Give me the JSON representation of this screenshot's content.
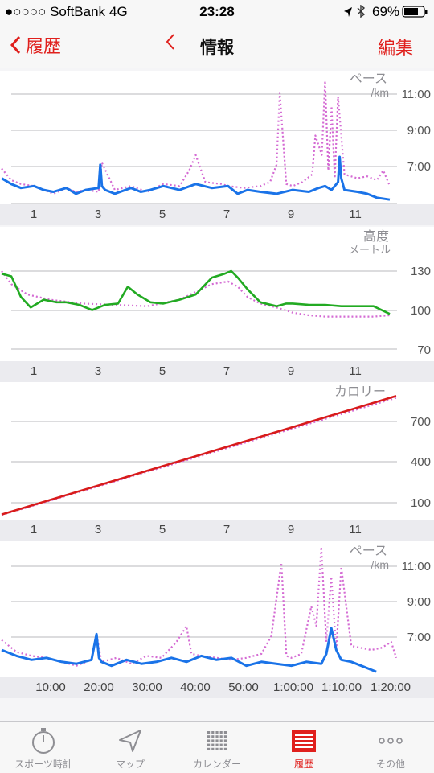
{
  "status_bar": {
    "carrier": "●○○○○ SoftBank",
    "network": "4G",
    "time": "23:28",
    "battery": "69%"
  },
  "nav": {
    "back_label": "履歴",
    "title": "情報",
    "edit_label": "編集"
  },
  "colors": {
    "accent": "#e0201d",
    "pace_line": "#1a73e8",
    "compare_dotted": "#d46bd3",
    "elevation_line": "#22aa22",
    "calorie_line": "#d81b1b"
  },
  "charts": {
    "pace_km": {
      "label": "ペース",
      "unit": "/km",
      "ticks": [
        "11:00",
        "9:00",
        "7:00"
      ],
      "x_ticks": [
        "1",
        "3",
        "5",
        "7",
        "9",
        "11"
      ]
    },
    "elevation": {
      "label": "高度",
      "unit": "メートル",
      "ticks": [
        "130",
        "100",
        "70"
      ],
      "x_ticks": [
        "1",
        "3",
        "5",
        "7",
        "9",
        "11"
      ]
    },
    "calories": {
      "label": "カロリー",
      "ticks": [
        "700",
        "400",
        "100"
      ],
      "x_ticks": [
        "1",
        "3",
        "5",
        "7",
        "9",
        "11"
      ]
    },
    "pace_time": {
      "label": "ペース",
      "unit": "/km",
      "ticks": [
        "11:00",
        "9:00",
        "7:00"
      ],
      "x_ticks": [
        "10:00",
        "20:00",
        "30:00",
        "40:00",
        "50:00",
        "1:00:00",
        "1:10:00",
        "1:20:00"
      ]
    }
  },
  "chart_data": [
    {
      "type": "line",
      "ylabel": "ペース /km",
      "x_unit": "km",
      "ylim": [
        5.5,
        12
      ],
      "y_reversed": false,
      "series": [
        {
          "x": [
            0,
            0.3,
            0.6,
            1,
            1.3,
            1.6,
            2,
            2.3,
            2.6,
            3,
            3.05,
            3.1,
            3.2,
            3.5,
            4,
            4.3,
            4.6,
            5,
            5.5,
            6,
            6.5,
            7,
            7.3,
            7.6,
            8,
            8.5,
            9,
            9.5,
            9.8,
            10,
            10.2,
            10.4,
            10.45,
            10.5,
            10.6,
            11,
            11.3,
            11.6,
            12
          ],
          "y": [
            6.8,
            6.5,
            6.3,
            6.4,
            6.2,
            6.1,
            6.3,
            6.0,
            6.2,
            6.3,
            7.5,
            6.4,
            6.2,
            6.0,
            6.3,
            6.1,
            6.2,
            6.4,
            6.2,
            6.5,
            6.3,
            6.4,
            6.0,
            6.2,
            6.1,
            6.0,
            6.2,
            6.1,
            6.3,
            6.4,
            6.2,
            6.6,
            7.9,
            6.8,
            6.2,
            6.1,
            6.0,
            5.8,
            5.7
          ]
        },
        {
          "x": [
            0,
            0.3,
            0.6,
            1,
            1.3,
            1.6,
            2,
            2.3,
            2.6,
            3,
            3.1,
            3.5,
            4,
            4.5,
            5,
            5.5,
            5.8,
            6,
            6.3,
            6.8,
            7,
            7.5,
            8,
            8.3,
            8.5,
            8.6,
            8.8,
            9,
            9.3,
            9.6,
            9.7,
            9.9,
            10,
            10.1,
            10.2,
            10.3,
            10.4,
            10.6,
            10.8,
            11,
            11.3,
            11.6,
            11.8,
            12
          ],
          "y": [
            7.3,
            6.7,
            6.5,
            6.4,
            6.2,
            6.0,
            6.3,
            6.1,
            6.2,
            6.1,
            7.6,
            6.2,
            6.4,
            6.1,
            6.5,
            6.4,
            7.2,
            8.0,
            6.6,
            6.5,
            6.4,
            6.3,
            6.4,
            6.6,
            7.5,
            11.2,
            6.5,
            6.4,
            6.6,
            7.0,
            9.0,
            8.0,
            11.8,
            7.2,
            10.5,
            6.8,
            11.0,
            7.0,
            6.9,
            6.8,
            6.9,
            6.7,
            7.2,
            6.4
          ]
        }
      ]
    },
    {
      "type": "line",
      "ylabel": "高度 メートル",
      "x_unit": "km",
      "ylim": [
        60,
        140
      ],
      "series": [
        {
          "x": [
            0,
            0.3,
            0.6,
            0.9,
            1.3,
            1.7,
            2,
            2.4,
            2.8,
            3.2,
            3.6,
            3.9,
            4.2,
            4.6,
            5,
            5.5,
            6,
            6.5,
            6.9,
            7.1,
            7.3,
            7.6,
            8,
            8.5,
            8.8,
            9,
            9.5,
            10,
            10.5,
            11,
            11.5,
            12
          ],
          "y": [
            128,
            126,
            110,
            102,
            108,
            106,
            106,
            104,
            100,
            104,
            105,
            118,
            112,
            106,
            105,
            108,
            112,
            125,
            128,
            130,
            125,
            116,
            106,
            103,
            105,
            105,
            104,
            104,
            103,
            103,
            103,
            97
          ]
        },
        {
          "x": [
            0,
            0.3,
            0.8,
            1.5,
            2.5,
            3.5,
            4.5,
            5.5,
            6,
            6.5,
            7,
            7.3,
            7.6,
            8,
            8.5,
            9,
            9.5,
            10,
            10.5,
            11,
            11.5,
            12
          ],
          "y": [
            130,
            120,
            112,
            108,
            105,
            104,
            103,
            108,
            114,
            120,
            122,
            118,
            110,
            105,
            102,
            98,
            96,
            95,
            95,
            95,
            95,
            96
          ]
        }
      ]
    },
    {
      "type": "line",
      "ylabel": "カロリー",
      "x_unit": "km",
      "ylim": [
        0,
        1000
      ],
      "series": [
        {
          "x": [
            0,
            12.2
          ],
          "y": [
            15,
            930
          ]
        },
        {
          "x": [
            0,
            12.2
          ],
          "y": [
            10,
            915
          ]
        }
      ]
    },
    {
      "type": "line",
      "ylabel": "ペース /km",
      "x_unit": "minutes",
      "ylim": [
        5.5,
        12
      ],
      "series": [
        {
          "x": [
            0,
            3,
            6,
            9,
            12,
            15,
            18,
            19,
            19.5,
            20,
            22,
            25,
            28,
            31,
            34,
            37,
            40,
            43,
            46,
            49,
            52,
            55,
            58,
            61,
            64,
            65,
            66,
            67,
            68,
            70,
            72,
            74,
            75
          ],
          "y": [
            6.8,
            6.5,
            6.3,
            6.4,
            6.2,
            6.1,
            6.3,
            7.6,
            6.4,
            6.2,
            6.0,
            6.3,
            6.1,
            6.2,
            6.4,
            6.2,
            6.5,
            6.3,
            6.4,
            6.0,
            6.2,
            6.1,
            6.0,
            6.2,
            6.1,
            6.6,
            7.9,
            6.8,
            6.3,
            6.2,
            6.0,
            5.8,
            5.7
          ]
        },
        {
          "x": [
            0,
            3,
            6,
            9,
            12,
            15,
            18,
            19,
            20,
            23,
            26,
            29,
            32,
            35,
            37,
            38,
            40,
            43,
            46,
            49,
            52,
            54,
            56,
            57,
            58,
            60,
            62,
            63,
            64,
            65,
            66,
            67,
            68,
            70,
            72,
            74,
            76,
            78,
            79
          ],
          "y": [
            7.3,
            6.7,
            6.5,
            6.4,
            6.2,
            6.0,
            6.3,
            7.6,
            6.2,
            6.4,
            6.1,
            6.5,
            6.4,
            7.2,
            8.0,
            6.6,
            6.5,
            6.4,
            6.3,
            6.4,
            6.6,
            7.5,
            11.2,
            6.5,
            6.4,
            6.6,
            9.0,
            8.0,
            12.0,
            7.2,
            10.5,
            6.8,
            11.0,
            7.0,
            6.9,
            6.8,
            6.9,
            7.2,
            6.4
          ]
        }
      ]
    }
  ],
  "tabs": [
    {
      "label": "スポーツ時計",
      "icon": "stopwatch-icon"
    },
    {
      "label": "マップ",
      "icon": "location-arrow-icon"
    },
    {
      "label": "カレンダー",
      "icon": "calendar-grid-icon"
    },
    {
      "label": "履歴",
      "icon": "history-icon",
      "active": true
    },
    {
      "label": "その他",
      "icon": "more-icon"
    }
  ]
}
